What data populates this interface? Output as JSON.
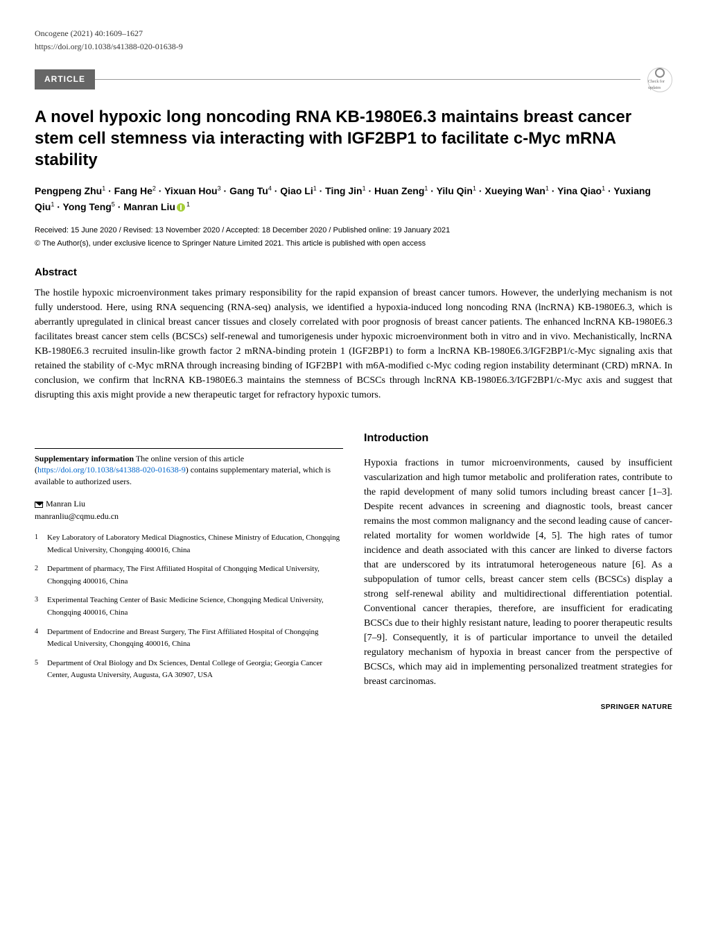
{
  "header": {
    "journal": "Oncogene (2021) 40:1609–1627",
    "doi": "https://doi.org/10.1038/s41388-020-01638-9"
  },
  "article_label": "ARTICLE",
  "check_updates_label": "Check for updates",
  "title": "A novel hypoxic long noncoding RNA KB-1980E6.3 maintains breast cancer stem cell stemness via interacting with IGF2BP1 to facilitate c-Myc mRNA stability",
  "authors_html": "Pengpeng Zhu<sup>1</sup> · Fang He<sup>2</sup> · Yixuan Hou<sup>3</sup> · Gang Tu<sup>4</sup> · Qiao Li<sup>1</sup> · Ting Jin<sup>1</sup> · Huan Zeng<sup>1</sup> · Yilu Qin<sup>1</sup> · Xueying Wan<sup>1</sup> · Yina Qiao<sup>1</sup> · Yuxiang Qiu<sup>1</sup> · Yong Teng<sup>5</sup> · Manran Liu",
  "last_author_orcid_sup": "1",
  "dates": "Received: 15 June 2020 / Revised: 13 November 2020 / Accepted: 18 December 2020 / Published online: 19 January 2021",
  "copyright": "© The Author(s), under exclusive licence to Springer Nature Limited 2021. This article is published with open access",
  "abstract": {
    "heading": "Abstract",
    "text": "The hostile hypoxic microenvironment takes primary responsibility for the rapid expansion of breast cancer tumors. However, the underlying mechanism is not fully understood. Here, using RNA sequencing (RNA-seq) analysis, we identified a hypoxia-induced long noncoding RNA (lncRNA) KB-1980E6.3, which is aberrantly upregulated in clinical breast cancer tissues and closely correlated with poor prognosis of breast cancer patients. The enhanced lncRNA KB-1980E6.3 facilitates breast cancer stem cells (BCSCs) self-renewal and tumorigenesis under hypoxic microenvironment both in vitro and in vivo. Mechanistically, lncRNA KB-1980E6.3 recruited insulin-like growth factor 2 mRNA-binding protein 1 (IGF2BP1) to form a lncRNA KB-1980E6.3/IGF2BP1/c-Myc signaling axis that retained the stability of c-Myc mRNA through increasing binding of IGF2BP1 with m6A-modified c-Myc coding region instability determinant (CRD) mRNA. In conclusion, we confirm that lncRNA KB-1980E6.3 maintains the stemness of BCSCs through lncRNA KB-1980E6.3/IGF2BP1/c-Myc axis and suggest that disrupting this axis might provide a new therapeutic target for refractory hypoxic tumors."
  },
  "introduction": {
    "heading": "Introduction",
    "text": "Hypoxia fractions in tumor microenvironments, caused by insufficient vascularization and high tumor metabolic and proliferation rates, contribute to the rapid development of many solid tumors including breast cancer [1–3]. Despite recent advances in screening and diagnostic tools, breast cancer remains the most common malignancy and the second leading cause of cancer-related mortality for women worldwide [4, 5]. The high rates of tumor incidence and death associated with this cancer are linked to diverse factors that are underscored by its intratumoral heterogeneous nature [6]. As a subpopulation of tumor cells, breast cancer stem cells (BCSCs) display a strong self-renewal ability and multidirectional differentiation potential. Conventional cancer therapies, therefore, are insufficient for eradicating BCSCs due to their highly resistant nature, leading to poorer therapeutic results [7–9]. Consequently, it is of particular importance to unveil the detailed regulatory mechanism of hypoxia in breast cancer from the perspective of BCSCs, which may aid in implementing personalized treatment strategies for breast carcinomas."
  },
  "supplementary": {
    "label": "Supplementary information",
    "text": "The online version of this article (",
    "link": "https://doi.org/10.1038/s41388-020-01638-9",
    "text2": ") contains supplementary material, which is available to authorized users."
  },
  "corresponding": {
    "name": "Manran Liu",
    "email": "manranliu@cqmu.edu.cn"
  },
  "affiliations": [
    {
      "num": "1",
      "text": "Key Laboratory of Laboratory Medical Diagnostics, Chinese Ministry of Education, Chongqing Medical University, Chongqing 400016, China"
    },
    {
      "num": "2",
      "text": "Department of pharmacy, The First Affiliated Hospital of Chongqing Medical University, Chongqing 400016, China"
    },
    {
      "num": "3",
      "text": "Experimental Teaching Center of Basic Medicine Science, Chongqing Medical University, Chongqing 400016, China"
    },
    {
      "num": "4",
      "text": "Department of Endocrine and Breast Surgery, The First Affiliated Hospital of Chongqing Medical University, Chongqing 400016, China"
    },
    {
      "num": "5",
      "text": "Department of Oral Biology and Dx Sciences, Dental College of Georgia; Georgia Cancer Center, Augusta University, Augusta, GA 30907, USA"
    }
  ],
  "footer_logo": "SPRINGER NATURE"
}
